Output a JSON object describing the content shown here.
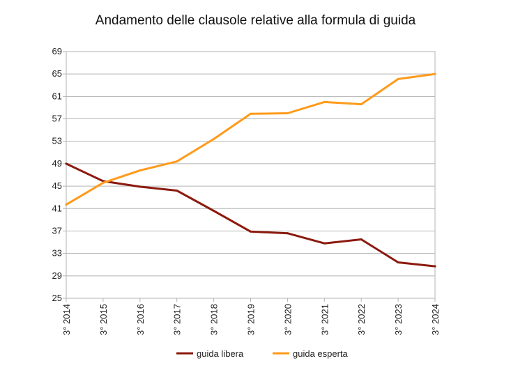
{
  "chart_data": {
    "type": "line",
    "title": "Andamento delle clausole relative alla formula di guida",
    "categories": [
      "3° 2014",
      "3° 2015",
      "3° 2016",
      "3° 2017",
      "3° 2018",
      "3° 2019",
      "3° 2020",
      "3° 2021",
      "3° 2022",
      "3° 2023",
      "3° 2024"
    ],
    "yticks": [
      25,
      29,
      33,
      37,
      41,
      45,
      49,
      53,
      57,
      61,
      65,
      69
    ],
    "ylim": [
      25,
      69
    ],
    "grid": true,
    "legend_position": "bottom",
    "series": [
      {
        "name": "guida libera",
        "color": "#8b1a0e",
        "values": [
          49.0,
          45.9,
          44.9,
          44.2,
          40.6,
          36.9,
          36.6,
          34.8,
          35.5,
          31.4,
          30.7
        ]
      },
      {
        "name": "guida esperta",
        "color": "#ff9a1a",
        "values": [
          41.7,
          45.6,
          47.8,
          49.4,
          53.4,
          57.9,
          58.0,
          60.0,
          59.6,
          64.1,
          65.0
        ]
      }
    ]
  }
}
